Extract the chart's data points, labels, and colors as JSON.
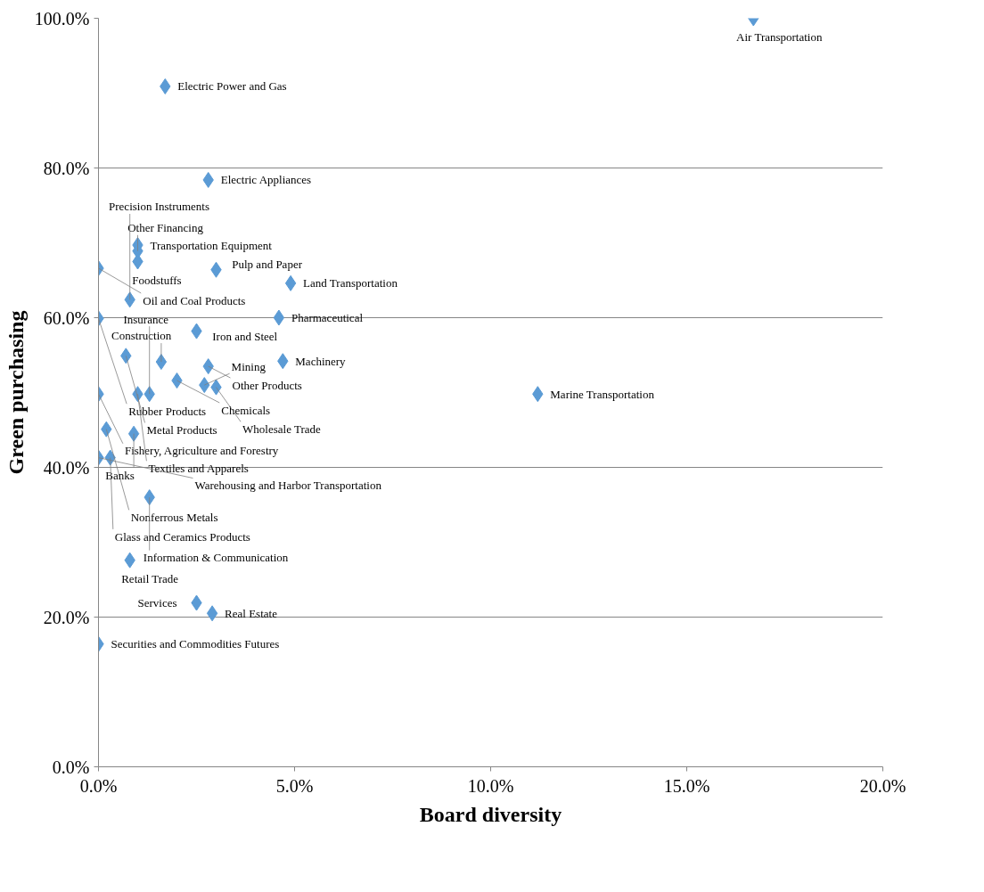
{
  "chart_data": {
    "type": "scatter",
    "xlabel": "Board diversity",
    "ylabel": "Green purchasing",
    "x": [
      16.7,
      1.7,
      2.8,
      1.0,
      1.0,
      1.0,
      3.0,
      0.0,
      4.9,
      0.8,
      0.0,
      4.6,
      2.5,
      0.7,
      0.0,
      1.6,
      2.8,
      4.7,
      1.0,
      2.0,
      3.0,
      1.3,
      2.7,
      0.2,
      0.0,
      0.9,
      0.3,
      1.3,
      0.8,
      2.5,
      2.9,
      0.0,
      11.2
    ],
    "values": [
      100.0,
      90.9,
      78.4,
      69.7,
      68.9,
      67.5,
      66.4,
      66.6,
      64.6,
      62.4,
      59.9,
      60.0,
      58.2,
      54.9,
      49.8,
      54.1,
      53.5,
      54.2,
      49.8,
      51.6,
      50.7,
      49.8,
      51.0,
      45.1,
      41.3,
      44.5,
      41.3,
      36.0,
      27.6,
      21.9,
      20.5,
      16.4,
      49.8
    ],
    "color": "#5b9bd5",
    "marker": "diamond",
    "annotations": [
      {
        "text": "Air Transportation",
        "x": 16.7,
        "y": 100.0
      },
      {
        "text": "Electric Power and Gas",
        "x": 1.7,
        "y": 90.9
      },
      {
        "text": "Electric Appliances",
        "x": 2.8,
        "y": 78.4
      },
      {
        "text": "Transportation Equipment",
        "x": 1.0,
        "y": 69.7
      },
      {
        "text": "Other Financing",
        "x": 1.0,
        "y": 68.9
      },
      {
        "text": "Foodstuffs",
        "x": 1.0,
        "y": 67.5
      },
      {
        "text": "Pulp and Paper",
        "x": 3.0,
        "y": 66.4
      },
      {
        "text": "Oil and Coal Products",
        "x": 0.0,
        "y": 66.6
      },
      {
        "text": "Land Transportation",
        "x": 4.9,
        "y": 64.6
      },
      {
        "text": "Precision Instruments",
        "x": 0.8,
        "y": 62.4
      },
      {
        "text": "Rubber Products",
        "x": 0.0,
        "y": 59.9
      },
      {
        "text": "Pharmaceutical",
        "x": 4.6,
        "y": 60.0
      },
      {
        "text": "Iron and Steel",
        "x": 2.5,
        "y": 58.2
      },
      {
        "text": "Metal Products",
        "x": 0.7,
        "y": 54.9
      },
      {
        "text": "Fishery, Agriculture and Forestry",
        "x": 0.0,
        "y": 49.8
      },
      {
        "text": "Construction",
        "x": 1.6,
        "y": 54.1
      },
      {
        "text": "Other Products",
        "x": 2.8,
        "y": 53.5
      },
      {
        "text": "Machinery",
        "x": 4.7,
        "y": 54.2
      },
      {
        "text": "Textiles and Apparels",
        "x": 1.0,
        "y": 49.8
      },
      {
        "text": "Chemicals",
        "x": 2.0,
        "y": 51.6
      },
      {
        "text": "Wholesale Trade",
        "x": 3.0,
        "y": 50.7
      },
      {
        "text": "Insurance",
        "x": 1.3,
        "y": 49.8
      },
      {
        "text": "Mining",
        "x": 2.7,
        "y": 51.0
      },
      {
        "text": "Nonferrous Metals",
        "x": 0.2,
        "y": 45.1
      },
      {
        "text": "Warehousing and Harbor Transportation",
        "x": 0.0,
        "y": 41.3
      },
      {
        "text": "Banks",
        "x": 0.9,
        "y": 44.5
      },
      {
        "text": "Glass and Ceramics Products",
        "x": 0.3,
        "y": 41.3
      },
      {
        "text": "Information & Communication",
        "x": 1.3,
        "y": 36.0
      },
      {
        "text": "Retail Trade",
        "x": 0.8,
        "y": 27.6
      },
      {
        "text": "Services",
        "x": 2.5,
        "y": 21.9
      },
      {
        "text": "Real Estate",
        "x": 2.9,
        "y": 20.5
      },
      {
        "text": "Securities and Commodities Futures",
        "x": 0.0,
        "y": 16.4
      },
      {
        "text": "Marine Transportation",
        "x": 11.2,
        "y": 49.8
      }
    ],
    "xlim": [
      0,
      20
    ],
    "ylim": [
      0,
      100
    ],
    "xticks": [
      {
        "value": 0,
        "label": "0.0%"
      },
      {
        "value": 5,
        "label": "5.0%"
      },
      {
        "value": 10,
        "label": "10.0%"
      },
      {
        "value": 15,
        "label": "15.0%"
      },
      {
        "value": 20,
        "label": "20.0%"
      }
    ],
    "yticks": [
      {
        "value": 0,
        "label": "0.0%"
      },
      {
        "value": 20,
        "label": "20.0%"
      },
      {
        "value": 40,
        "label": "40.0%"
      },
      {
        "value": 60,
        "label": "60.0%"
      },
      {
        "value": 80,
        "label": "80.0%"
      },
      {
        "value": 100,
        "label": "100.0%"
      }
    ],
    "grid": "y"
  }
}
